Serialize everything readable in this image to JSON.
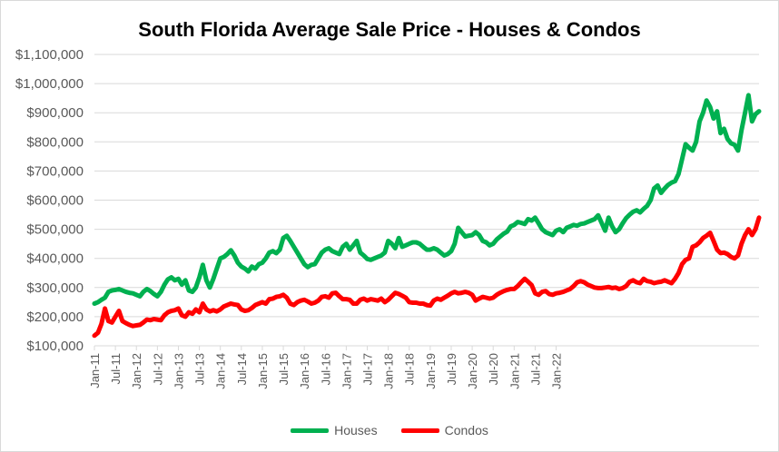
{
  "chart_data": {
    "type": "line",
    "title": "South Florida Average Sale Price - Houses & Condos",
    "ylim": [
      100000,
      1100000
    ],
    "y_ticks": [
      "$100,000",
      "$200,000",
      "$300,000",
      "$400,000",
      "$500,000",
      "$600,000",
      "$700,000",
      "$800,000",
      "$900,000",
      "$1,000,000",
      "$1,100,000"
    ],
    "y_tick_values": [
      100000,
      200000,
      300000,
      400000,
      500000,
      600000,
      700000,
      800000,
      900000,
      1000000,
      1100000
    ],
    "x_tick_labels": [
      "Jan-11",
      "Jul-11",
      "Jan-12",
      "Jul-12",
      "Jan-13",
      "Jul-13",
      "Jan-14",
      "Jul-14",
      "Jan-15",
      "Jul-15",
      "Jan-16",
      "Jul-16",
      "Jan-17",
      "Jul-17",
      "Jan-18",
      "Jul-18",
      "Jan-19",
      "Jul-19",
      "Jan-20",
      "Jul-20",
      "Jan-21",
      "Jul-21",
      "Jan-22"
    ],
    "grid": true,
    "legend": "bottom",
    "series": [
      {
        "name": "Houses",
        "color": "#00b050",
        "values": [
          245000,
          250000,
          258000,
          265000,
          285000,
          290000,
          292000,
          295000,
          290000,
          285000,
          282000,
          280000,
          275000,
          270000,
          285000,
          295000,
          288000,
          278000,
          270000,
          285000,
          310000,
          328000,
          335000,
          325000,
          330000,
          310000,
          325000,
          290000,
          285000,
          300000,
          335000,
          378000,
          325000,
          300000,
          330000,
          365000,
          400000,
          405000,
          415000,
          428000,
          410000,
          385000,
          372000,
          365000,
          355000,
          372000,
          365000,
          380000,
          385000,
          400000,
          420000,
          425000,
          418000,
          430000,
          470000,
          478000,
          460000,
          440000,
          420000,
          400000,
          380000,
          370000,
          378000,
          380000,
          400000,
          420000,
          430000,
          435000,
          425000,
          420000,
          415000,
          440000,
          450000,
          430000,
          445000,
          460000,
          420000,
          410000,
          398000,
          395000,
          400000,
          405000,
          410000,
          420000,
          460000,
          450000,
          435000,
          470000,
          440000,
          445000,
          450000,
          455000,
          455000,
          450000,
          440000,
          430000,
          430000,
          435000,
          430000,
          420000,
          410000,
          415000,
          425000,
          450000,
          505000,
          490000,
          475000,
          478000,
          480000,
          490000,
          480000,
          460000,
          455000,
          445000,
          450000,
          465000,
          475000,
          485000,
          492000,
          510000,
          515000,
          525000,
          522000,
          518000,
          535000,
          530000,
          540000,
          520000,
          500000,
          490000,
          485000,
          480000,
          495000,
          500000,
          490000,
          505000,
          510000,
          515000,
          512000,
          518000,
          520000,
          525000,
          530000,
          535000,
          548000,
          522000,
          495000,
          540000,
          510000,
          490000,
          500000,
          520000,
          538000,
          550000,
          560000,
          565000,
          558000,
          570000,
          580000,
          600000,
          640000,
          650000,
          625000,
          640000,
          652000,
          660000,
          665000,
          690000,
          740000,
          792000,
          780000,
          770000,
          800000,
          870000,
          900000,
          942000,
          920000,
          880000,
          905000,
          830000,
          845000,
          810000,
          795000,
          790000,
          770000,
          840000,
          900000,
          960000,
          870000,
          895000,
          905000
        ]
      },
      {
        "name": "Condos",
        "color": "#ff0000",
        "values": [
          135000,
          145000,
          175000,
          228000,
          185000,
          180000,
          200000,
          220000,
          185000,
          178000,
          172000,
          168000,
          170000,
          172000,
          180000,
          190000,
          188000,
          192000,
          190000,
          188000,
          205000,
          215000,
          220000,
          222000,
          228000,
          205000,
          200000,
          215000,
          210000,
          225000,
          215000,
          245000,
          225000,
          218000,
          222000,
          218000,
          225000,
          235000,
          240000,
          245000,
          242000,
          240000,
          225000,
          220000,
          222000,
          230000,
          240000,
          245000,
          250000,
          245000,
          260000,
          262000,
          268000,
          270000,
          275000,
          265000,
          245000,
          240000,
          250000,
          255000,
          258000,
          252000,
          245000,
          248000,
          255000,
          268000,
          270000,
          265000,
          280000,
          282000,
          270000,
          260000,
          260000,
          258000,
          245000,
          245000,
          258000,
          262000,
          255000,
          260000,
          258000,
          255000,
          262000,
          250000,
          258000,
          270000,
          282000,
          278000,
          272000,
          265000,
          250000,
          248000,
          248000,
          245000,
          245000,
          240000,
          238000,
          255000,
          262000,
          258000,
          265000,
          272000,
          280000,
          285000,
          280000,
          282000,
          285000,
          282000,
          275000,
          255000,
          262000,
          268000,
          265000,
          262000,
          265000,
          275000,
          282000,
          288000,
          292000,
          295000,
          295000,
          305000,
          318000,
          330000,
          320000,
          308000,
          280000,
          275000,
          285000,
          288000,
          278000,
          275000,
          280000,
          282000,
          285000,
          290000,
          295000,
          305000,
          318000,
          322000,
          318000,
          310000,
          305000,
          300000,
          298000,
          298000,
          300000,
          302000,
          298000,
          300000,
          295000,
          298000,
          305000,
          320000,
          325000,
          318000,
          315000,
          330000,
          322000,
          320000,
          315000,
          318000,
          320000,
          325000,
          320000,
          315000,
          330000,
          350000,
          380000,
          395000,
          400000,
          440000,
          445000,
          455000,
          470000,
          478000,
          488000,
          460000,
          430000,
          418000,
          420000,
          415000,
          405000,
          400000,
          410000,
          450000,
          480000,
          500000,
          480000,
          500000,
          540000
        ]
      }
    ]
  }
}
